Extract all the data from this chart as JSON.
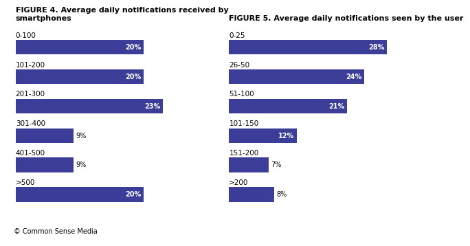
{
  "fig4_title_line1": "FIGURE 4. Average daily notifications received by",
  "fig4_title_line2": "smartphones",
  "fig4_categories": [
    "0-100",
    "101-200",
    "201-300",
    "301-400",
    "401-500",
    ">500"
  ],
  "fig4_values": [
    20,
    20,
    23,
    9,
    9,
    20
  ],
  "fig5_title_line1": "FIGURE 5. Average daily notifications seen by the user",
  "fig5_title_line2": "",
  "fig5_categories": [
    "0-25",
    "26-50",
    "51-100",
    "101-150",
    "151-200",
    ">200"
  ],
  "fig5_values": [
    28,
    24,
    21,
    12,
    7,
    8
  ],
  "bar_color": "#3C3C99",
  "label_inside_color": "#FFFFFF",
  "label_outside_color": "#000000",
  "inside_threshold": 12,
  "background_color": "#FFFFFF",
  "footer_text": "© Common Sense Media",
  "footer_bg": "#BBBBBB",
  "title_fontsize": 8.0,
  "label_fontsize": 7.0,
  "category_fontsize": 7.5,
  "bar_height": 0.5
}
